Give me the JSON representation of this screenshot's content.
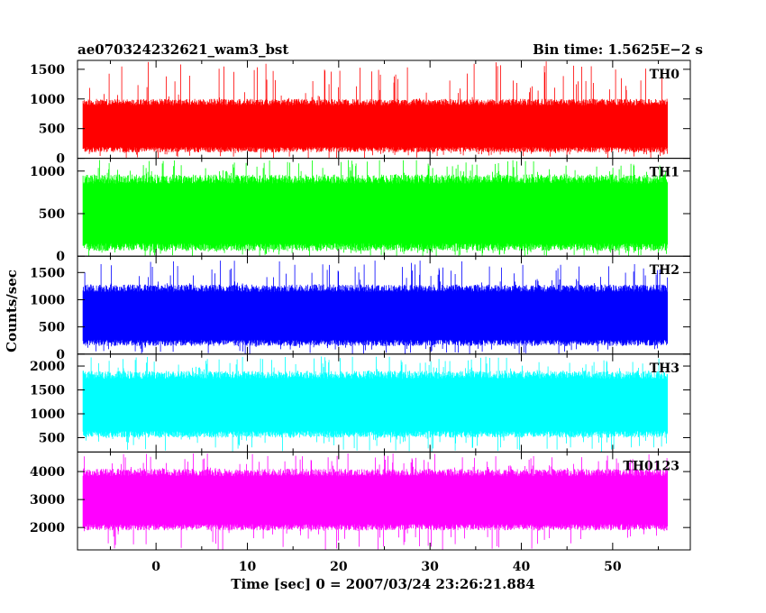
{
  "header": {
    "left_title": "ae070324232621_wam3_bst",
    "right_title": "Bin time: 1.5625E−2 s"
  },
  "axes": {
    "xlabel": "Time [sec] 0 = 2007/03/24 23:26:21.884",
    "ylabel": "Counts/sec"
  },
  "colors": {
    "TH0": "#ff0000",
    "TH1": "#00ff00",
    "TH2": "#0000ff",
    "TH3": "#00ffff",
    "TH0123": "#ff00ff"
  },
  "chart_data": {
    "type": "line",
    "x": {
      "range": [
        -8.6,
        58.5
      ],
      "data_range": [
        -8.0,
        56.0
      ],
      "bin_time_s": 0.015625,
      "major_ticks": [
        0,
        10,
        20,
        30,
        40,
        50
      ],
      "tick_labels": [
        "0",
        "10",
        "20",
        "30",
        "40",
        "50"
      ]
    },
    "panels": [
      {
        "name": "TH0",
        "color": "#ff0000",
        "ylim": [
          0,
          1650
        ],
        "yticks": [
          0,
          500,
          1000,
          1500
        ],
        "ytick_labels": [
          "0",
          "500",
          "1000",
          "1500"
        ],
        "level": [
          100,
          1000
        ],
        "spike_max": 1650
      },
      {
        "name": "TH1",
        "color": "#00ff00",
        "ylim": [
          0,
          1150
        ],
        "yticks": [
          0,
          500,
          1000
        ],
        "ytick_labels": [
          "0",
          "500",
          "1000"
        ],
        "level": [
          60,
          960
        ],
        "spike_max": 1130
      },
      {
        "name": "TH2",
        "color": "#0000ff",
        "ylim": [
          0,
          1800
        ],
        "yticks": [
          0,
          500,
          1000,
          1500
        ],
        "ytick_labels": [
          "0",
          "500",
          "1000",
          "1500"
        ],
        "level": [
          150,
          1280
        ],
        "spike_max": 1720
      },
      {
        "name": "TH3",
        "color": "#00ffff",
        "ylim": [
          200,
          2250
        ],
        "yticks": [
          500,
          1000,
          1500,
          2000
        ],
        "ytick_labels": [
          "500",
          "1000",
          "1500",
          "2000"
        ],
        "level": [
          500,
          1900
        ],
        "spike_max": 2200
      },
      {
        "name": "TH0123",
        "color": "#ff00ff",
        "ylim": [
          1200,
          4700
        ],
        "yticks": [
          2000,
          3000,
          4000
        ],
        "ytick_labels": [
          "2000",
          "3000",
          "4000"
        ],
        "level": [
          1900,
          4100
        ],
        "spike_max": 4650
      }
    ]
  }
}
